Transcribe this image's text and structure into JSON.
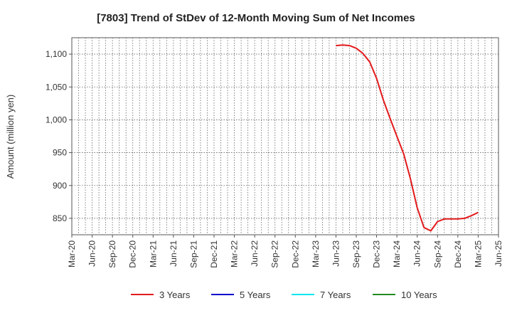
{
  "chart_data": {
    "type": "line",
    "title": "[7803]  Trend of StDev of 12-Month Moving Sum of Net Incomes",
    "ylabel": "Amount (million yen)",
    "xlabel": "",
    "ylim": [
      825,
      1125
    ],
    "yticks": [
      850,
      900,
      950,
      1000,
      1050,
      1100
    ],
    "ytick_labels": [
      "850",
      "900",
      "950",
      "1,000",
      "1,050",
      "1,100"
    ],
    "xticks": [
      "Mar-20",
      "Jun-20",
      "Sep-20",
      "Dec-20",
      "Mar-21",
      "Jun-21",
      "Sep-21",
      "Dec-21",
      "Mar-22",
      "Jun-22",
      "Sep-22",
      "Dec-22",
      "Mar-23",
      "Jun-23",
      "Sep-23",
      "Dec-23",
      "Mar-24",
      "Jun-24",
      "Sep-24",
      "Dec-24",
      "Mar-25",
      "Jun-25"
    ],
    "grid": true,
    "legend_position": "bottom",
    "series": [
      {
        "name": "3 Years",
        "color": "#e31a1c",
        "x": [
          "2023-06",
          "2023-07",
          "2023-08",
          "2023-09",
          "2023-10",
          "2023-11",
          "2023-12",
          "2024-01",
          "2024-02",
          "2024-03",
          "2024-04",
          "2024-05",
          "2024-06",
          "2024-07",
          "2024-08",
          "2024-09",
          "2024-10",
          "2024-11",
          "2024-12",
          "2025-01",
          "2025-02",
          "2025-03"
        ],
        "values": [
          1113,
          1114,
          1113,
          1109,
          1101,
          1088,
          1063,
          1030,
          1002,
          975,
          948,
          910,
          866,
          836,
          831,
          845,
          849,
          849,
          849,
          850,
          854,
          859
        ]
      },
      {
        "name": "5 Years",
        "color": "#0000cc",
        "x": [],
        "values": []
      },
      {
        "name": "7 Years",
        "color": "#00e5ee",
        "x": [],
        "values": []
      },
      {
        "name": "10 Years",
        "color": "#228b22",
        "x": [],
        "values": []
      }
    ]
  }
}
